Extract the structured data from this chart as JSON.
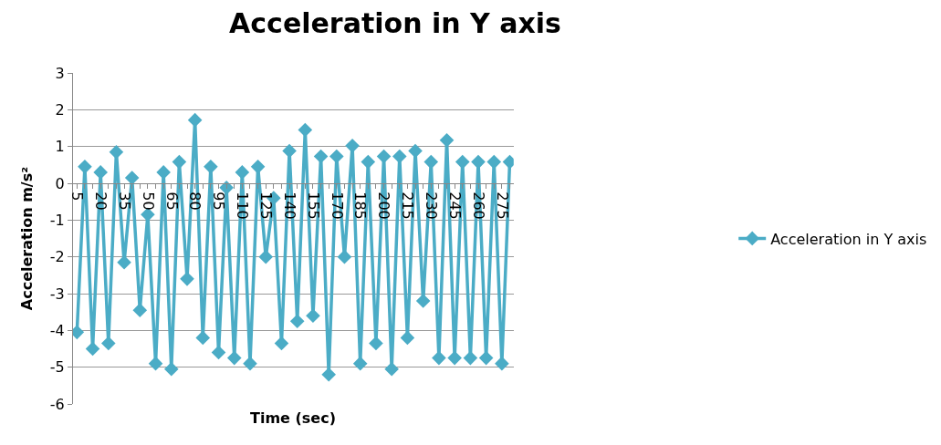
{
  "chart_data": {
    "type": "line",
    "title": "Acceleration in Y axis",
    "xlabel": "Time (sec)",
    "ylabel": "Acceleration m/s²",
    "categories": [
      "5",
      null,
      null,
      "20",
      null,
      null,
      "35",
      null,
      null,
      "50",
      null,
      null,
      "65",
      null,
      null,
      "80",
      null,
      null,
      "95",
      null,
      null,
      "110",
      null,
      null,
      "125",
      null,
      null,
      "140",
      null,
      null,
      "155",
      null,
      null,
      "170",
      null,
      null,
      "185",
      null,
      null,
      "200",
      null,
      null,
      "215",
      null,
      null,
      "230",
      null,
      null,
      "245",
      null,
      null,
      "260",
      null,
      null,
      "275",
      null
    ],
    "series": [
      {
        "name": "Acceleration in Y axis",
        "color": "#4bacc6",
        "values": [
          -4.05,
          0.45,
          -4.5,
          0.3,
          -4.35,
          0.85,
          -2.15,
          0.15,
          -3.45,
          -0.85,
          -4.9,
          0.3,
          -5.05,
          0.58,
          -2.6,
          1.72,
          -4.2,
          0.45,
          -4.6,
          -0.12,
          -4.75,
          0.3,
          -4.9,
          0.45,
          -2.0,
          -0.4,
          -4.35,
          0.88,
          -3.75,
          1.45,
          -3.6,
          0.73,
          -5.2,
          0.73,
          -2.0,
          1.02,
          -4.9,
          0.58,
          -4.35,
          0.73,
          -5.05,
          0.73,
          -4.2,
          0.88,
          -3.2,
          0.58,
          -4.75,
          1.17,
          -4.75,
          0.58,
          -4.75,
          0.58,
          -4.75,
          0.58,
          -4.9,
          0.58
        ]
      }
    ],
    "ylim": [
      -6,
      3
    ],
    "yticks": [
      -6,
      -5,
      -4,
      -3,
      -2,
      -1,
      0,
      1,
      2,
      3
    ],
    "grid": "y",
    "legend": "right",
    "marker": "diamond",
    "line_style": "solid"
  }
}
